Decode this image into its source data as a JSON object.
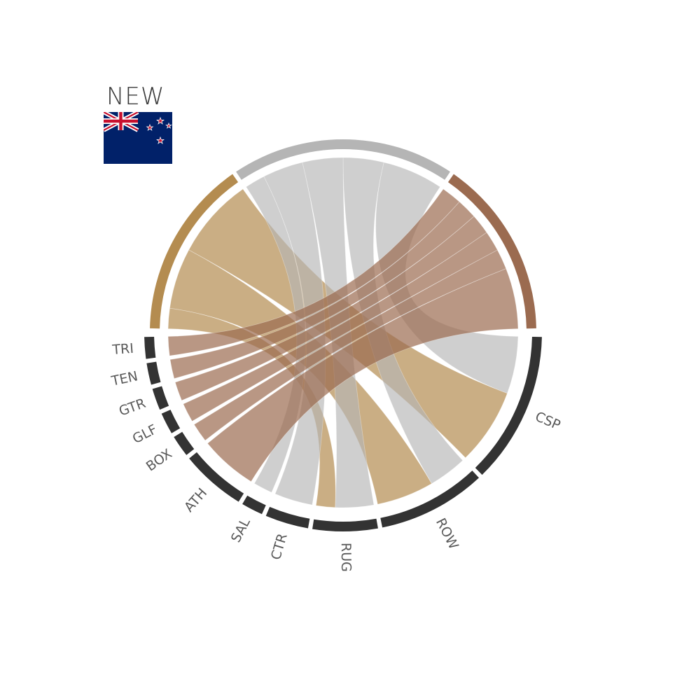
{
  "country": {
    "code": "NEW",
    "flag": "new-zealand-flag"
  },
  "colors": {
    "gold": "#b48c50",
    "silver": "#b5b5b5",
    "bronze": "#9b6b50",
    "sport_bar": "#333333",
    "label": "#5a5a5a",
    "flag_blue": "#012169",
    "flag_red": "#c8102e"
  },
  "medals": [
    {
      "name": "gold"
    },
    {
      "name": "silver"
    },
    {
      "name": "bronze"
    }
  ],
  "sports": [
    {
      "label": "CSP"
    },
    {
      "label": "ROW"
    },
    {
      "label": "RUG"
    },
    {
      "label": "CTR"
    },
    {
      "label": "SAL"
    },
    {
      "label": "ATH"
    },
    {
      "label": "BOX"
    },
    {
      "label": "GLF"
    },
    {
      "label": "GTR"
    },
    {
      "label": "TEN"
    },
    {
      "label": "TRI"
    }
  ],
  "chart_data": {
    "type": "chord",
    "groups": [
      "gold",
      "silver",
      "bronze",
      "CSP",
      "ROW",
      "RUG",
      "CTR",
      "SAL",
      "ATH",
      "BOX",
      "GLF",
      "GTR",
      "TEN",
      "TRI"
    ],
    "flows": [
      {
        "medal": "gold",
        "sport": "CSP",
        "value": 4
      },
      {
        "medal": "gold",
        "sport": "ROW",
        "value": 3
      },
      {
        "medal": "gold",
        "sport": "RUG",
        "value": 1
      },
      {
        "medal": "silver",
        "sport": "CSP",
        "value": 3
      },
      {
        "medal": "silver",
        "sport": "ROW",
        "value": 2
      },
      {
        "medal": "silver",
        "sport": "RUG",
        "value": 2
      },
      {
        "medal": "silver",
        "sport": "CTR",
        "value": 2
      },
      {
        "medal": "silver",
        "sport": "SAL",
        "value": 1
      },
      {
        "medal": "bronze",
        "sport": "ATH",
        "value": 3
      },
      {
        "medal": "bronze",
        "sport": "BOX",
        "value": 1
      },
      {
        "medal": "bronze",
        "sport": "GLF",
        "value": 1
      },
      {
        "medal": "bronze",
        "sport": "GTR",
        "value": 1
      },
      {
        "medal": "bronze",
        "sport": "TEN",
        "value": 1
      },
      {
        "medal": "bronze",
        "sport": "TRI",
        "value": 1
      }
    ]
  }
}
